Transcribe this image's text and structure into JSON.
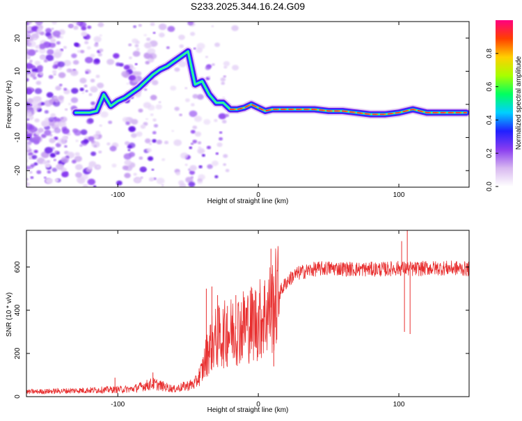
{
  "figure": {
    "title": "S233.2025.344.16.24.G09"
  },
  "chart_data": [
    {
      "type": "heatmap",
      "name": "spectrogram",
      "xlabel": "Height of straight line (km)",
      "ylabel": "Frequency (Hz)",
      "xlim": [
        -165,
        150
      ],
      "ylim": [
        -25,
        25
      ],
      "xticks": [
        -100,
        0,
        100
      ],
      "yticks": [
        -20,
        -10,
        0,
        10,
        20
      ],
      "trace": {
        "x": [
          -130,
          -125,
          -120,
          -115,
          -110,
          -105,
          -100,
          -95,
          -90,
          -85,
          -80,
          -75,
          -70,
          -65,
          -60,
          -55,
          -50,
          -45,
          -40,
          -35,
          -30,
          -25,
          -20,
          -15,
          -10,
          -5,
          0,
          5,
          10,
          20,
          30,
          40,
          50,
          60,
          70,
          80,
          90,
          100,
          110,
          120,
          130,
          140,
          148
        ],
        "freq": [
          -2.5,
          -2.5,
          -2.5,
          -2,
          3,
          -0.5,
          1,
          2,
          3.5,
          5,
          7,
          9,
          10.5,
          11.5,
          13,
          14.5,
          16,
          6,
          7,
          3,
          0.5,
          0.5,
          -1.5,
          -1.5,
          -1,
          0,
          -1,
          -2,
          -1.5,
          -1.5,
          -1.5,
          -1.5,
          -2,
          -2,
          -2.5,
          -3,
          -3,
          -2.5,
          -1.5,
          -2.5,
          -2.5,
          -2.5,
          -2.5
        ]
      },
      "colorbar": {
        "label": "Normalized spectral amplitude",
        "ticks": [
          0.0,
          0.2,
          0.4,
          0.6,
          0.8
        ],
        "range": [
          0,
          1
        ],
        "stops": [
          "#ffffff",
          "#d8b8f0",
          "#8a3df0",
          "#2020ff",
          "#00d0ff",
          "#00ff60",
          "#a8ff00",
          "#ffd000",
          "#ff4000",
          "#ff0080"
        ]
      }
    },
    {
      "type": "line",
      "name": "snr",
      "xlabel": "Height of straight line (km)",
      "ylabel": "SNR (10 * v/v)",
      "xlim": [
        -165,
        150
      ],
      "ylim": [
        0,
        770
      ],
      "xticks": [
        -100,
        0,
        100
      ],
      "yticks": [
        0,
        200,
        400,
        600
      ],
      "series_color": "#e83030",
      "envelope": {
        "x": [
          -165,
          -90,
          -75,
          -60,
          -45,
          -40,
          -35,
          -30,
          -20,
          -10,
          0,
          10,
          15,
          20,
          25,
          30,
          40,
          50,
          70,
          90,
          100,
          110,
          120,
          140,
          150
        ],
        "y": [
          22,
          35,
          60,
          35,
          60,
          120,
          230,
          270,
          300,
          330,
          350,
          420,
          480,
          530,
          560,
          575,
          590,
          595,
          590,
          590,
          595,
          590,
          595,
          595,
          590
        ]
      },
      "spikes": [
        {
          "x": -37,
          "y": 500
        },
        {
          "x": -33,
          "y": 510
        },
        {
          "x": -29,
          "y": 470
        },
        {
          "x": -22,
          "y": 420
        },
        {
          "x": -16,
          "y": 470
        },
        {
          "x": -10,
          "y": 460
        },
        {
          "x": 9,
          "y": 685
        },
        {
          "x": 11,
          "y": 140
        },
        {
          "x": 102,
          "y": 720
        },
        {
          "x": 104,
          "y": 300
        },
        {
          "x": 106,
          "y": 770
        },
        {
          "x": 108,
          "y": 290
        },
        {
          "x": -75,
          "y": 112
        },
        {
          "x": -102,
          "y": 88
        }
      ]
    }
  ]
}
